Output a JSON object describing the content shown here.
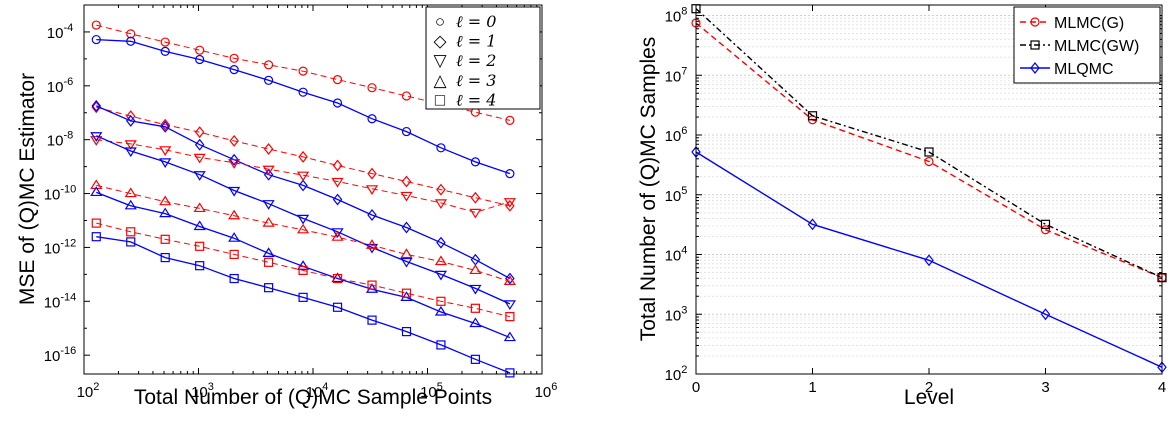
{
  "chart_data": [
    {
      "type": "line",
      "xlabel": "Total Number of (Q)MC Sample Points",
      "ylabel": "MSE of (Q)MC Estimator",
      "xscale": "log",
      "yscale": "log",
      "xlim": [
        100,
        1000000
      ],
      "ylim": [
        2e-17,
        0.001
      ],
      "xticks": [
        {
          "exp": "2",
          "value": 100
        },
        {
          "exp": "3",
          "value": 1000
        },
        {
          "exp": "4",
          "value": 10000
        },
        {
          "exp": "5",
          "value": 100000
        },
        {
          "exp": "6",
          "value": 1000000
        }
      ],
      "yticks": [
        {
          "exp": "-4",
          "value": 0.0001
        },
        {
          "exp": "-6",
          "value": 1e-06
        },
        {
          "exp": "-8",
          "value": 1e-08
        },
        {
          "exp": "-10",
          "value": 1e-10
        },
        {
          "exp": "-12",
          "value": 1e-12
        },
        {
          "exp": "-14",
          "value": 1e-14
        },
        {
          "exp": "-16",
          "value": 1e-16
        }
      ],
      "x": [
        128,
        256,
        512,
        1024,
        2048,
        4096,
        8192,
        16384,
        32768,
        65536,
        131072,
        262144,
        524288
      ],
      "legend_position": "top-right",
      "legend": [
        {
          "symbol": "○",
          "label": "ℓ = 0",
          "marker": "circle"
        },
        {
          "symbol": "◇",
          "label": "ℓ = 1",
          "marker": "diamond"
        },
        {
          "symbol": "▽",
          "label": "ℓ = 2",
          "marker": "tri-down"
        },
        {
          "symbol": "△",
          "label": "ℓ = 3",
          "marker": "tri-up"
        },
        {
          "symbol": "□",
          "label": "ℓ = 4",
          "marker": "square"
        }
      ],
      "series": [
        {
          "level": 0,
          "method": "MC",
          "marker": "circle",
          "color": "#ff0000",
          "dash": true,
          "values": [
            0.00018,
            8.5e-05,
            4.2e-05,
            2.1e-05,
            1.05e-05,
            6e-06,
            3.5e-06,
            1.7e-06,
            8.5e-07,
            4.2e-07,
            2.1e-07,
            1.05e-07,
            5.2e-08
          ]
        },
        {
          "level": 0,
          "method": "QMC",
          "marker": "circle",
          "color": "#0000ff",
          "dash": false,
          "values": [
            5.2e-05,
            4.5e-05,
            1.9e-05,
            9.5e-06,
            4e-06,
            1.6e-06,
            5.8e-07,
            2.3e-07,
            6e-08,
            2e-08,
            5e-09,
            1.5e-09,
            5.5e-10
          ]
        },
        {
          "level": 1,
          "method": "MC",
          "marker": "diamond",
          "color": "#ff0000",
          "dash": true,
          "values": [
            1.6e-07,
            7.5e-08,
            3.6e-08,
            1.9e-08,
            9e-09,
            4.5e-09,
            2.3e-09,
            1.1e-09,
            5.5e-10,
            2.8e-10,
            1.4e-10,
            7e-11,
            3.5e-11
          ]
        },
        {
          "level": 1,
          "method": "QMC",
          "marker": "diamond",
          "color": "#0000ff",
          "dash": false,
          "values": [
            1.8e-07,
            5e-08,
            3e-08,
            6.5e-09,
            1.8e-09,
            5e-10,
            2e-10,
            6e-11,
            1.6e-11,
            5.5e-12,
            1.5e-12,
            3.5e-13,
            7e-14
          ]
        },
        {
          "level": 2,
          "method": "MC",
          "marker": "tri-down",
          "color": "#ff0000",
          "dash": true,
          "values": [
            1e-08,
            7e-09,
            4.2e-09,
            2.2e-09,
            1.4e-09,
            8e-10,
            4.8e-10,
            2.8e-10,
            1.5e-10,
            8.5e-11,
            4.5e-11,
            2e-11,
            5e-11
          ]
        },
        {
          "level": 2,
          "method": "QMC",
          "marker": "tri-down",
          "color": "#0000ff",
          "dash": false,
          "values": [
            1.4e-08,
            3.8e-09,
            1.5e-09,
            5e-10,
            1.3e-10,
            4.2e-11,
            1.2e-11,
            3.8e-12,
            1e-12,
            3e-13,
            1e-13,
            3e-14,
            8e-15
          ]
        },
        {
          "level": 3,
          "method": "MC",
          "marker": "tri-up",
          "color": "#ff0000",
          "dash": true,
          "values": [
            2e-10,
            1e-10,
            5e-11,
            2.8e-11,
            1.5e-11,
            8e-12,
            4.5e-12,
            2.4e-12,
            1.2e-12,
            5.5e-13,
            3e-13,
            1.4e-13,
            5.5e-14
          ]
        },
        {
          "level": 3,
          "method": "QMC",
          "marker": "tri-up",
          "color": "#0000ff",
          "dash": false,
          "values": [
            1.1e-10,
            3.5e-11,
            1.8e-11,
            6e-12,
            2.2e-12,
            6e-13,
            2e-13,
            7e-14,
            2.8e-14,
            1.4e-14,
            4e-15,
            1.5e-15,
            4.5e-16
          ]
        },
        {
          "level": 4,
          "method": "MC",
          "marker": "square",
          "color": "#ff0000",
          "dash": true,
          "values": [
            8e-12,
            3.8e-12,
            2e-12,
            1.1e-12,
            5.5e-13,
            2.8e-13,
            1.4e-13,
            7e-14,
            4e-14,
            2e-14,
            1e-14,
            5.5e-15,
            2.7e-15
          ]
        },
        {
          "level": 4,
          "method": "QMC",
          "marker": "square",
          "color": "#0000ff",
          "dash": false,
          "values": [
            2.5e-12,
            1.6e-12,
            4.2e-13,
            2.1e-13,
            7e-14,
            3.2e-14,
            1.4e-14,
            6e-15,
            2e-15,
            7.5e-16,
            2.4e-16,
            7e-17,
            2.2e-17
          ]
        }
      ]
    },
    {
      "type": "line",
      "xlabel": "Level",
      "ylabel": "Total Number of (Q)MC Samples",
      "yscale": "log",
      "xlim": [
        0,
        4
      ],
      "ylim": [
        100,
        150000000
      ],
      "categories": [
        "0",
        "1",
        "2",
        "3",
        "4"
      ],
      "yticks": [
        {
          "exp": "2",
          "value": 100
        },
        {
          "exp": "3",
          "value": 1000
        },
        {
          "exp": "4",
          "value": 10000
        },
        {
          "exp": "5",
          "value": 100000
        },
        {
          "exp": "6",
          "value": 1000000
        },
        {
          "exp": "7",
          "value": 10000000
        },
        {
          "exp": "8",
          "value": 100000000
        }
      ],
      "grid": "minor and major y gridlines",
      "legend_position": "top-right",
      "series": [
        {
          "name": "MLMC(G)",
          "color": "#ff0000",
          "marker": "circle",
          "dash": "dashed",
          "values": [
            75000000,
            1800000,
            360000,
            26000,
            4100
          ]
        },
        {
          "name": "MLMC(GW)",
          "color": "#000000",
          "marker": "square",
          "dash": "dashdot",
          "values": [
            130000000,
            2100000,
            520000,
            32000,
            4100
          ]
        },
        {
          "name": "MLQMC",
          "color": "#0000ff",
          "marker": "diamond",
          "dash": "solid",
          "values": [
            520000,
            32000,
            8000,
            1000,
            130
          ]
        }
      ]
    }
  ]
}
